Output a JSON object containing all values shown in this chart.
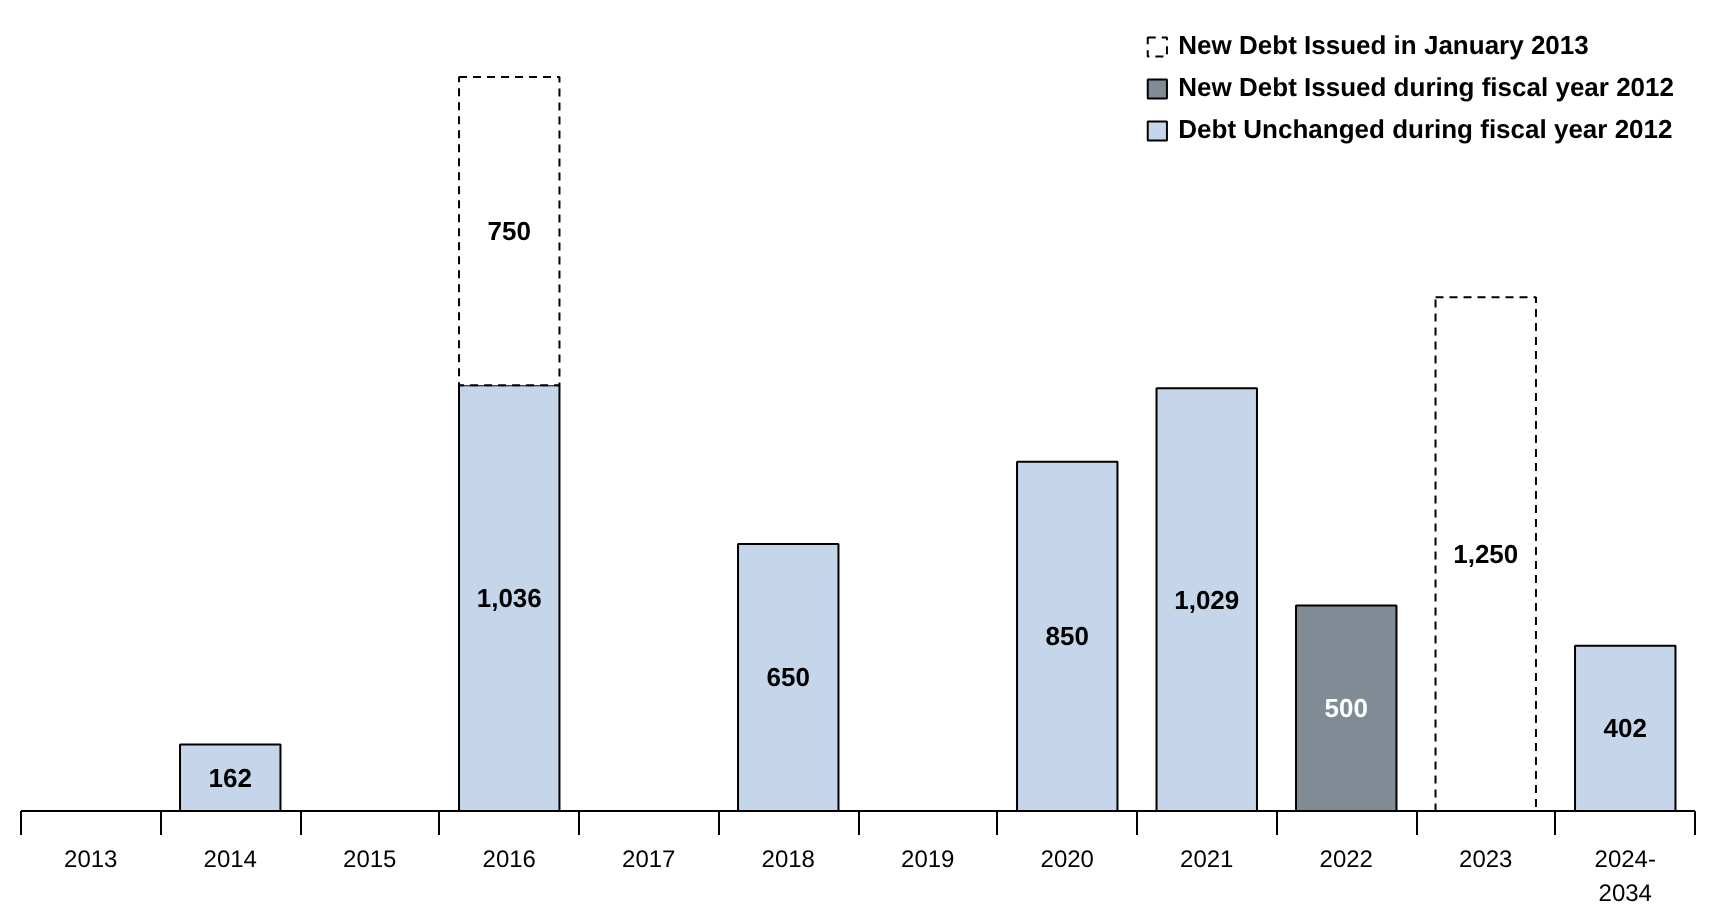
{
  "chart_data": {
    "type": "bar",
    "stacked": true,
    "legend": "top right",
    "grid": false,
    "categories": [
      "2013",
      "2014",
      "2015",
      "2016",
      "2017",
      "2018",
      "2019",
      "2020",
      "2021",
      "2022",
      "2023",
      "2024-\n2034"
    ],
    "tick_labels": "x",
    "series": [
      {
        "name": "Debt Unchanged during fiscal year 2012",
        "color": "#c5d5ea",
        "values": [
          null,
          162,
          null,
          1036,
          null,
          650,
          null,
          850,
          1029,
          null,
          null,
          402
        ],
        "value_labels": [
          null,
          "162",
          null,
          "1,036",
          null,
          "650",
          null,
          "850",
          "1,029",
          null,
          null,
          "402"
        ]
      },
      {
        "name": "New Debt Issued during fiscal year 2012",
        "color": "#808b96",
        "values": [
          null,
          null,
          null,
          null,
          null,
          null,
          null,
          null,
          null,
          500,
          null,
          null
        ],
        "value_labels": [
          null,
          null,
          null,
          null,
          null,
          null,
          null,
          null,
          null,
          "500",
          null,
          null
        ]
      },
      {
        "name": "New Debt Issued in January 2013",
        "color": "#ffffff",
        "line_style": "dashed",
        "values": [
          null,
          null,
          null,
          750,
          null,
          null,
          null,
          null,
          null,
          null,
          1250,
          null
        ],
        "value_labels": [
          null,
          null,
          null,
          "750",
          null,
          null,
          null,
          null,
          null,
          null,
          "1,250",
          null
        ]
      }
    ]
  }
}
